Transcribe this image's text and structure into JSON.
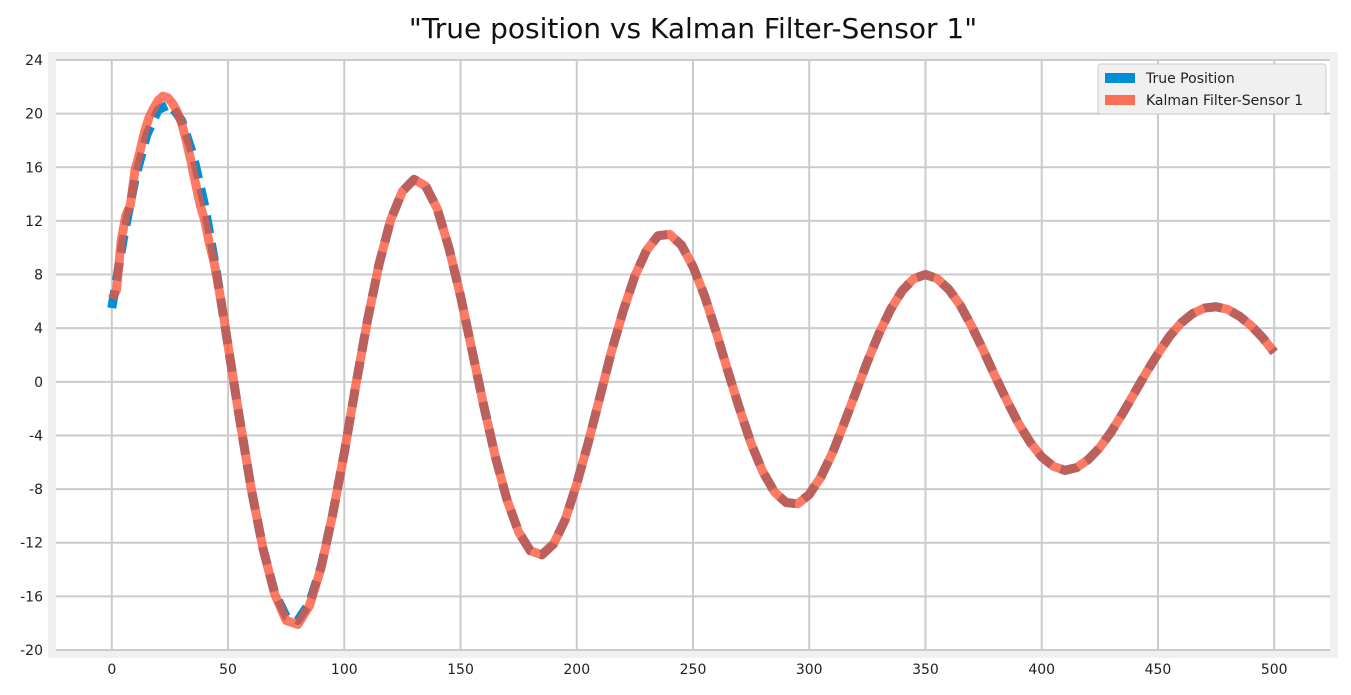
{
  "chart_data": {
    "type": "line",
    "title": "\"True position vs Kalman Filter-Sensor 1\"",
    "xlabel": "",
    "ylabel": "",
    "xlim": [
      -24,
      524
    ],
    "ylim": [
      -20,
      24
    ],
    "xticks": [
      0,
      50,
      100,
      150,
      200,
      250,
      300,
      350,
      400,
      450,
      500
    ],
    "yticks": [
      24,
      20,
      16,
      12,
      8,
      4,
      0,
      -4,
      -8,
      -12,
      -16,
      -20
    ],
    "grid": true,
    "legend_position": "top-right",
    "series": [
      {
        "name": "True Position",
        "color": "#008fd5",
        "style": "dashed",
        "x": [
          0,
          5,
          10,
          15,
          20,
          25,
          30,
          35,
          40,
          45,
          50,
          55,
          60,
          65,
          70,
          75,
          80,
          85,
          90,
          95,
          100,
          105,
          110,
          115,
          120,
          125,
          130,
          135,
          140,
          145,
          150,
          155,
          160,
          165,
          170,
          175,
          180,
          185,
          190,
          195,
          200,
          205,
          210,
          215,
          220,
          225,
          230,
          235,
          240,
          245,
          250,
          255,
          260,
          265,
          270,
          275,
          280,
          285,
          290,
          295,
          300,
          305,
          310,
          315,
          320,
          325,
          330,
          335,
          340,
          345,
          350,
          355,
          360,
          365,
          370,
          375,
          380,
          385,
          390,
          395,
          400,
          405,
          410,
          415,
          420,
          425,
          430,
          435,
          440,
          445,
          450,
          455,
          460,
          465,
          470,
          475,
          480,
          485,
          490,
          495,
          500
        ],
        "y": [
          5.5,
          10.7,
          15.1,
          18.4,
          20.3,
          20.7,
          19.5,
          16.9,
          13.1,
          8.2,
          2.7,
          -2.8,
          -8.0,
          -12.4,
          -15.7,
          -17.5,
          -17.8,
          -16.5,
          -13.8,
          -9.9,
          -5.3,
          -0.2,
          4.6,
          8.8,
          12.1,
          14.2,
          15.1,
          14.6,
          12.9,
          10.0,
          6.4,
          2.3,
          -1.8,
          -5.6,
          -8.8,
          -11.2,
          -12.6,
          -12.9,
          -12.1,
          -10.3,
          -7.6,
          -4.5,
          -1.1,
          2.3,
          5.3,
          7.9,
          9.8,
          10.9,
          11.0,
          10.2,
          8.6,
          6.4,
          3.7,
          0.8,
          -2.0,
          -4.6,
          -6.7,
          -8.2,
          -9.0,
          -9.1,
          -8.4,
          -7.1,
          -5.3,
          -3.1,
          -0.8,
          1.5,
          3.6,
          5.4,
          6.8,
          7.7,
          8.0,
          7.7,
          6.9,
          5.7,
          4.1,
          2.3,
          0.4,
          -1.4,
          -3.1,
          -4.5,
          -5.6,
          -6.3,
          -6.6,
          -6.4,
          -5.8,
          -4.9,
          -3.7,
          -2.3,
          -0.8,
          0.7,
          2.1,
          3.4,
          4.4,
          5.1,
          5.5,
          5.6,
          5.4,
          4.9,
          4.2,
          3.3,
          2.2
        ]
      },
      {
        "name": "Kalman Filter-Sensor 1",
        "color": "#fc4f30",
        "style": "solid",
        "x": [
          0,
          2,
          4,
          6,
          8,
          10,
          12,
          14,
          16,
          18,
          20,
          22,
          24,
          26,
          28,
          30,
          32,
          34,
          36,
          38,
          40,
          42,
          44,
          46,
          48,
          50,
          55,
          60,
          65,
          70,
          75,
          80,
          85,
          90,
          95,
          100,
          105,
          110,
          115,
          120,
          125,
          130,
          135,
          140,
          145,
          150,
          155,
          160,
          165,
          170,
          175,
          180,
          185,
          190,
          195,
          200,
          205,
          210,
          215,
          220,
          225,
          230,
          235,
          240,
          245,
          250,
          255,
          260,
          265,
          270,
          275,
          280,
          285,
          290,
          295,
          300,
          305,
          310,
          315,
          320,
          325,
          330,
          335,
          340,
          345,
          350,
          355,
          360,
          365,
          370,
          375,
          380,
          385,
          390,
          395,
          400,
          405,
          410,
          415,
          420,
          425,
          430,
          435,
          440,
          445,
          450,
          455,
          460,
          465,
          470,
          475,
          480,
          485,
          490,
          495,
          500
        ],
        "y": [
          6.2,
          6.8,
          10.5,
          12.4,
          13.2,
          15.8,
          17.1,
          18.6,
          19.7,
          20.4,
          21.0,
          21.3,
          21.2,
          20.8,
          20.2,
          19.3,
          18.0,
          16.5,
          14.8,
          13.2,
          12.0,
          10.3,
          8.9,
          7.0,
          5.0,
          2.7,
          -2.8,
          -8.0,
          -12.4,
          -15.8,
          -17.8,
          -18.1,
          -16.7,
          -13.9,
          -9.9,
          -5.3,
          -0.2,
          4.6,
          8.8,
          12.1,
          14.2,
          15.1,
          14.6,
          12.9,
          10.0,
          6.4,
          2.3,
          -1.8,
          -5.6,
          -8.8,
          -11.2,
          -12.6,
          -12.9,
          -12.1,
          -10.3,
          -7.6,
          -4.5,
          -1.1,
          2.3,
          5.3,
          7.9,
          9.8,
          10.9,
          11.0,
          10.2,
          8.6,
          6.4,
          3.7,
          0.8,
          -2.0,
          -4.6,
          -6.7,
          -8.2,
          -9.0,
          -9.1,
          -8.4,
          -7.1,
          -5.3,
          -3.1,
          -0.8,
          1.5,
          3.6,
          5.4,
          6.8,
          7.7,
          8.0,
          7.7,
          6.9,
          5.7,
          4.1,
          2.3,
          0.4,
          -1.4,
          -3.1,
          -4.5,
          -5.6,
          -6.3,
          -6.6,
          -6.4,
          -5.8,
          -4.9,
          -3.7,
          -2.3,
          -0.8,
          0.7,
          2.1,
          3.4,
          4.4,
          5.1,
          5.5,
          5.6,
          5.4,
          4.9,
          4.2,
          3.3,
          2.2
        ]
      }
    ]
  },
  "colors": {
    "figure_background": "#f0f0f0",
    "plot_background": "#ffffff",
    "grid": "#cbcbcb"
  }
}
